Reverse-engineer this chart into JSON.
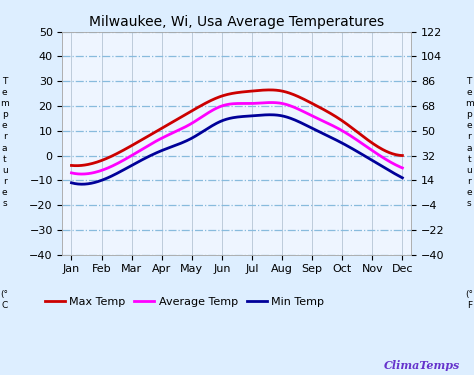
{
  "title": "Milwaukee, Wi, Usa Average Temperatures",
  "months": [
    "Jan",
    "Feb",
    "Mar",
    "Apr",
    "May",
    "Jun",
    "Jul",
    "Aug",
    "Sep",
    "Oct",
    "Nov",
    "Dec"
  ],
  "max_temp_c": [
    -4,
    -2,
    4,
    11,
    18,
    24,
    26,
    26,
    21,
    14,
    5,
    0
  ],
  "avg_temp_c": [
    -7,
    -6,
    0,
    7,
    13,
    20,
    21,
    21,
    16,
    10,
    2,
    -5
  ],
  "min_temp_c": [
    -11,
    -10,
    -4,
    2,
    7,
    14,
    16,
    16,
    11,
    5,
    -2,
    -9
  ],
  "max_color": "#cc0000",
  "avg_color": "#ff00ff",
  "min_color": "#000099",
  "ylim_c": [
    -40,
    50
  ],
  "ylim_f": [
    -40.0,
    122.0
  ],
  "yticks_c": [
    -40,
    -30,
    -20,
    -10,
    0,
    10,
    20,
    30,
    40,
    50
  ],
  "yticks_f": [
    -40.0,
    -22.0,
    -4.0,
    14.0,
    32.0,
    50.0,
    68.0,
    86.0,
    104.0,
    122.0
  ],
  "grid_h_color": "#88bbdd",
  "grid_v_color": "#aabbcc",
  "bg_color": "#ddeeff",
  "plot_bg_color": "#eef5ff",
  "brand": "ClimaTemps",
  "brand_color": "#6633cc",
  "line_width": 2.0,
  "title_fontsize": 10,
  "tick_fontsize": 8,
  "legend_fontsize": 8,
  "ylabel_left_top": "T\ne\nm\np\ne\nr\na\nt\nu\nr\ne\ns",
  "ylabel_left_bot": "(°\nC",
  "ylabel_right_top": "T\ne\nm\np\ne\nr\na\nt\nu\nr\ne\ns",
  "ylabel_right_bot": "(°\nF"
}
